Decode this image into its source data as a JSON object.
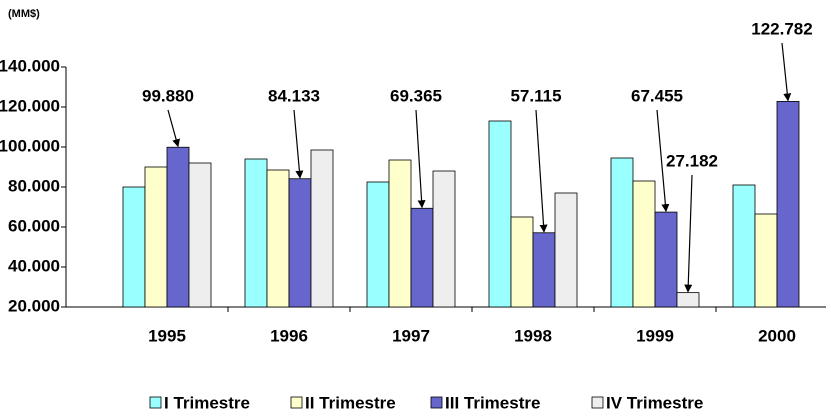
{
  "chart_data": {
    "type": "bar",
    "y_label": "(MM$)",
    "categories": [
      "1995",
      "1996",
      "1997",
      "1998",
      "1999",
      "2000"
    ],
    "series": [
      {
        "name": "I Trimestre",
        "color": "#99ffff",
        "values": [
          80,
          94,
          82.5,
          113,
          94.5,
          81
        ]
      },
      {
        "name": "II Trimestre",
        "color": "#ffffcc",
        "values": [
          90,
          88.5,
          93.5,
          65,
          83,
          66.5
        ]
      },
      {
        "name": "III Trimestre",
        "color": "#6666cc",
        "values": [
          99.88,
          84.133,
          69.365,
          57.115,
          67.455,
          122.782
        ],
        "value_labels": [
          "99.880",
          "84.133",
          "69.365",
          "57.115",
          "67.455",
          "122.782"
        ]
      },
      {
        "name": "IV Trimestre",
        "color": "#eeeeee",
        "values": [
          92,
          98.5,
          88,
          77,
          27.182,
          null
        ],
        "value_labels": [
          null,
          null,
          null,
          null,
          "27.182",
          null
        ]
      }
    ],
    "ylim": [
      20,
      140
    ],
    "yticks": [
      {
        "value": 20,
        "label": "20.000"
      },
      {
        "value": 40,
        "label": "40.000"
      },
      {
        "value": 60,
        "label": "60.000"
      },
      {
        "value": 80,
        "label": "80.000"
      },
      {
        "value": 100,
        "label": "100.000"
      },
      {
        "value": 120,
        "label": "120.000"
      },
      {
        "value": 140,
        "label": "140.000"
      }
    ],
    "legend": "bottom"
  }
}
